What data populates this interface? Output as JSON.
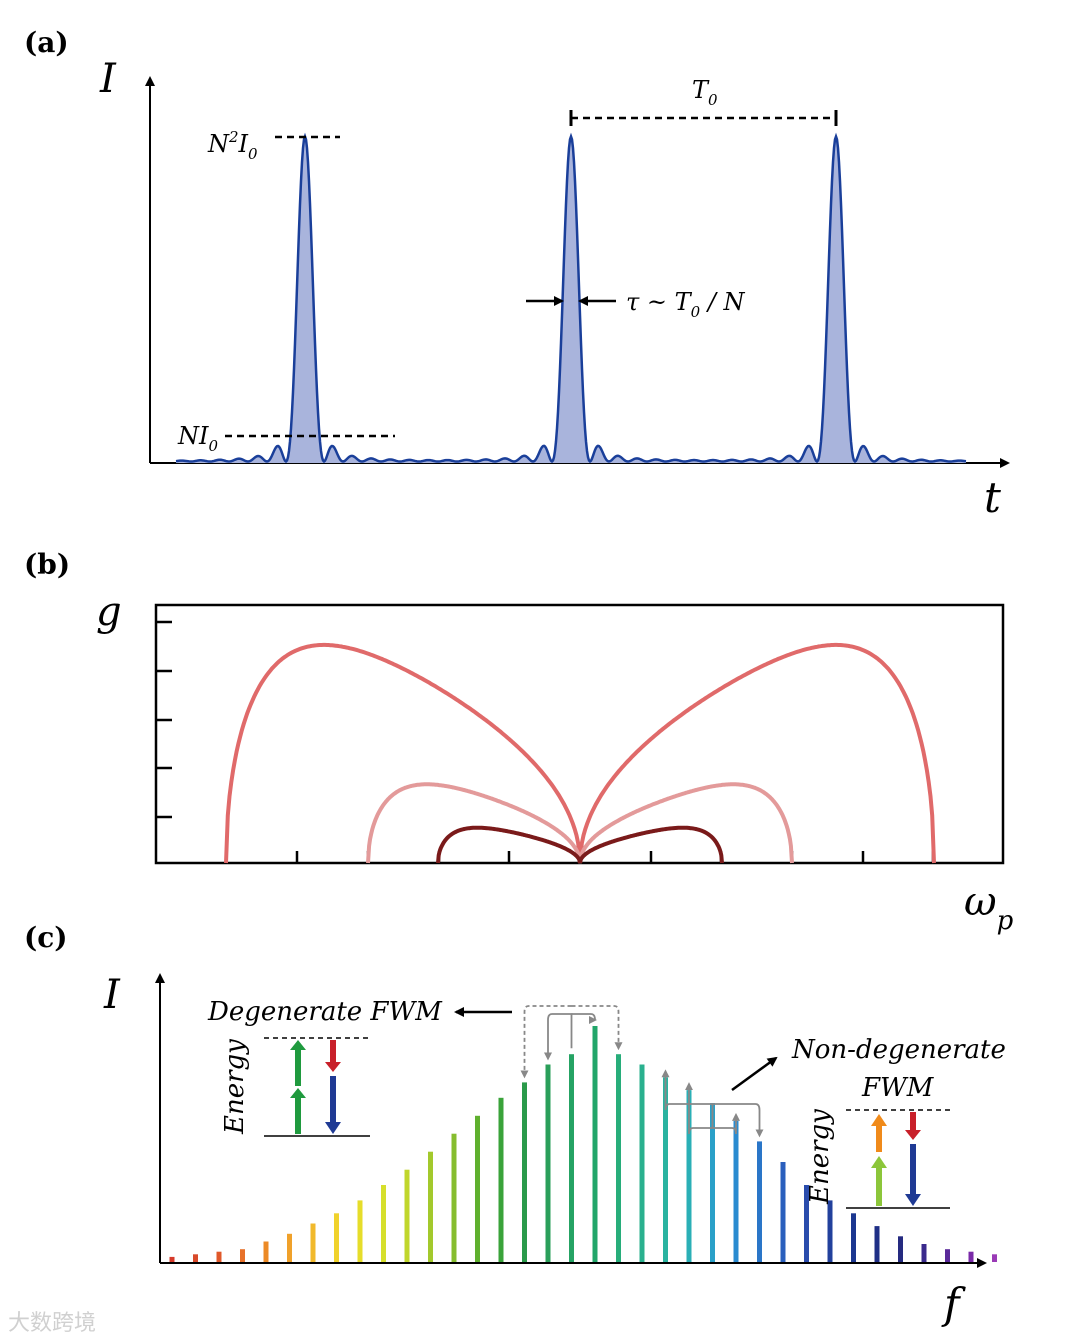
{
  "panel_a": {
    "tag": "(a)",
    "y_axis": "I",
    "x_axis": "t",
    "peak_label": {
      "main": "N",
      "sup": "2",
      "var": "I",
      "sub": "0"
    },
    "base_label": {
      "main": "NI",
      "sub": "0"
    },
    "period_label": {
      "main": "T",
      "sub": "0"
    },
    "width_label": {
      "pre": "τ ~ T",
      "sub": "0",
      "post": " / N"
    },
    "colors": {
      "curve": "#1a3f9a",
      "fill": "#a9b4dc"
    }
  },
  "panel_b": {
    "tag": "(b)",
    "y_axis": "g",
    "x_axis": {
      "main": "ω",
      "sub": "p"
    },
    "colors": {
      "outer": "#e06a6a",
      "middle": "#e39a9a",
      "inner": "#7a1a1a"
    }
  },
  "panel_c": {
    "tag": "(c)",
    "y_axis": "I",
    "x_axis": "f",
    "degenerate_label": "Degenerate FWM",
    "nondegenerate_label_line1": "Non-degenerate",
    "nondegenerate_label_line2": "FWM",
    "energy_label": "Energy"
  },
  "watermark": "大数跨境",
  "chart_data": {
    "type": "bar",
    "title": "",
    "xlabel": "f",
    "ylabel": "I",
    "values": [
      1,
      1.5,
      2,
      2.5,
      4,
      5.5,
      7.5,
      9.5,
      12,
      15,
      18,
      21.5,
      25,
      28.5,
      32,
      35,
      38.5,
      40.5,
      46,
      40.5,
      38.5,
      36,
      33.5,
      31,
      27.5,
      23.5,
      19.5,
      15,
      12,
      9.5,
      7,
      5,
      3.5,
      2.5,
      2,
      1.5
    ],
    "colors": [
      "#d63a2a",
      "#d84a2a",
      "#e0582a",
      "#e7712a",
      "#ec8a26",
      "#f0a12a",
      "#f1b92c",
      "#f0d22c",
      "#e6dd2a",
      "#d6df2c",
      "#c0d62c",
      "#a3c92c",
      "#86bd2e",
      "#5fb02e",
      "#3aa33a",
      "#2a9a4a",
      "#2a9f5a",
      "#25a364",
      "#22a66a",
      "#27ad7a",
      "#2ab08e",
      "#2ab3a0",
      "#2aafb6",
      "#2aa0c8",
      "#2a8bd0",
      "#2a76c8",
      "#2a5fbd",
      "#2a4cac",
      "#22409c",
      "#1c3790",
      "#1f2f86",
      "#252a80",
      "#3a2a8c",
      "#5a2a9a",
      "#7a2aa8",
      "#9a3ab6"
    ],
    "ylim": [
      0,
      50
    ]
  }
}
